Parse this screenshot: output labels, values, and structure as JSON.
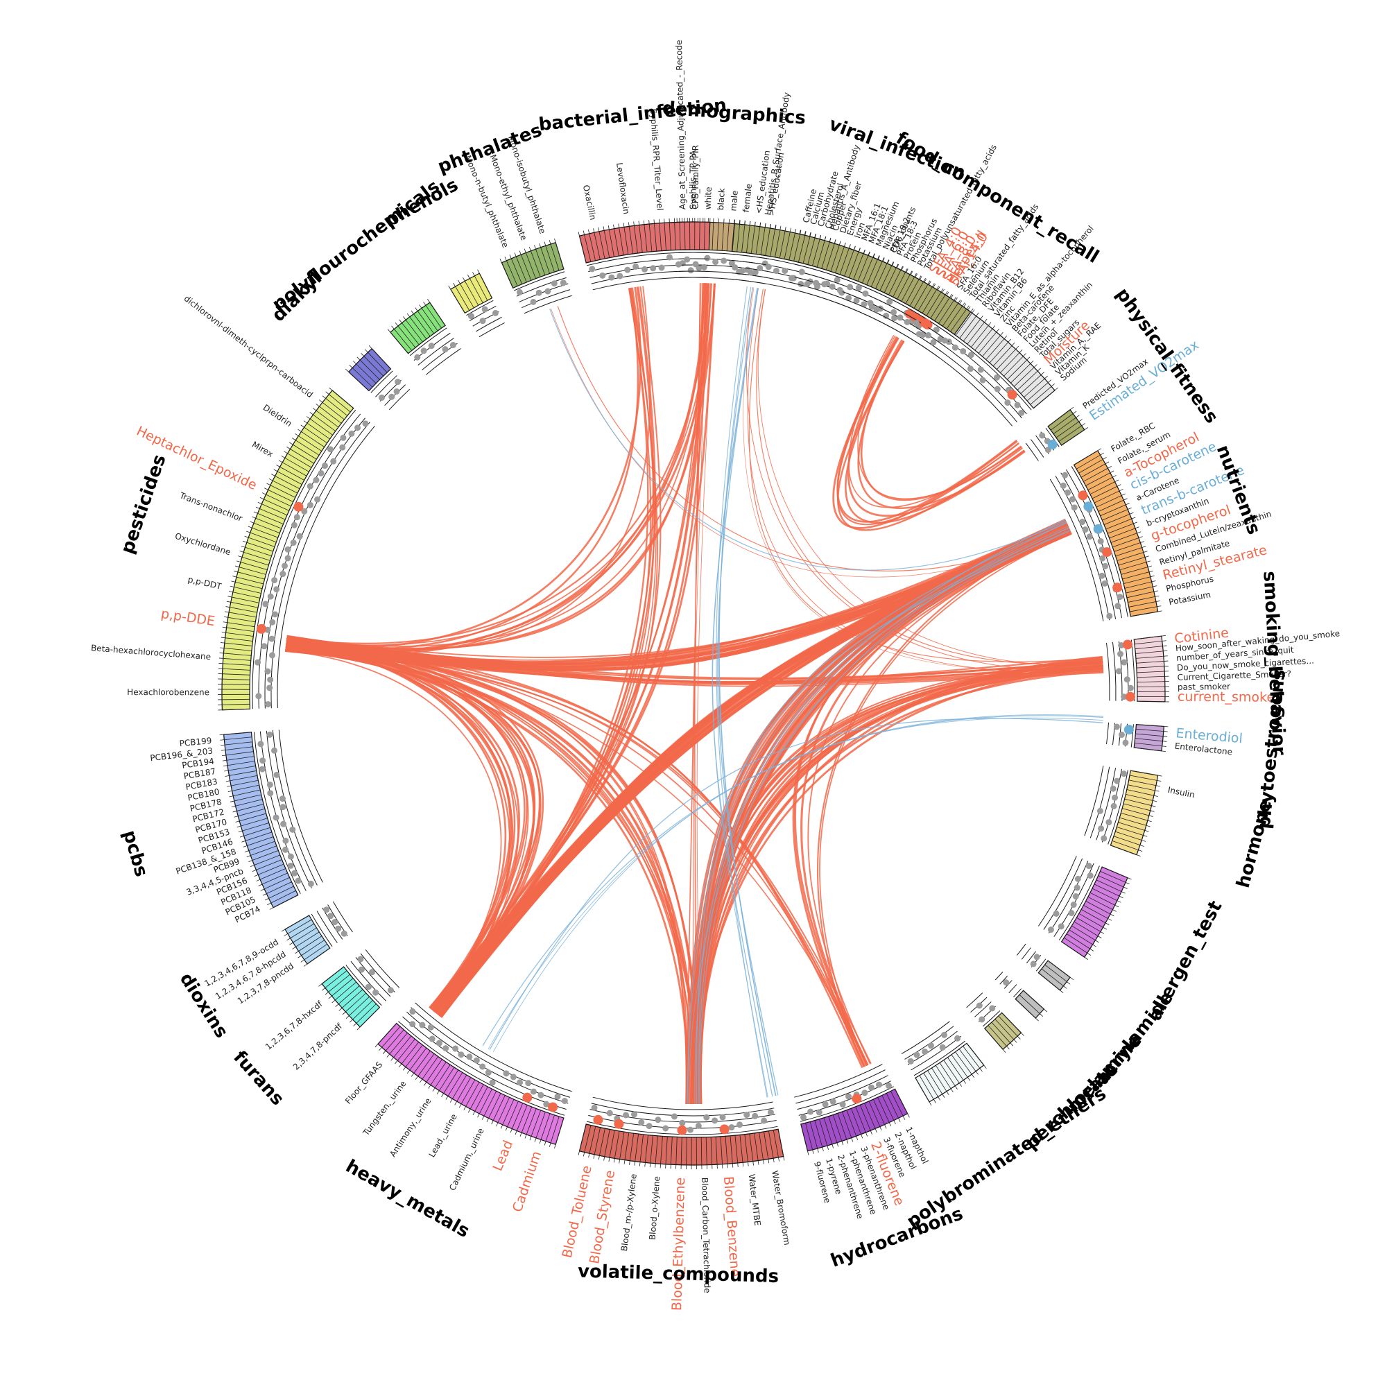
{
  "colors": {
    "positive": "#f2684a",
    "negative": "#6aaed6",
    "track": "#1a1a1a",
    "dot": "#9b9b9b"
  },
  "groups": [
    {
      "name": "demographics",
      "start": -2,
      "end": 10,
      "color": "#c4a676",
      "key": "demographics",
      "labels": [
        "Age_at_Screening_Adjudicated_-_Recode",
        "CPS_Family_PIR",
        "white",
        "black",
        "male",
        "female",
        "<HS_education",
        ">HS_education"
      ]
    },
    {
      "name": "food_component_recall",
      "start": 13,
      "end": 50,
      "color": "#e6e6e6",
      "key": "food",
      "labels": [
        "Caffeine",
        "Calcium",
        "Carbohydrate",
        "Cholesterol",
        "Copper",
        "Dietary_fiber",
        "Energy",
        "Iron",
        "MFA_16:1",
        "MFA_18:1",
        "Magnesium",
        "Niacin",
        "PFA_18:2",
        "PFA_18:3",
        "Protein",
        "Phosphorus",
        "Potassium",
        "Total_polyunsaturated_fatty_acids",
        "SFA_4:0",
        "SFA_6:0",
        "SFA_8:0",
        "SFA_14:0",
        "SFA_16:0",
        "Selenium",
        "Total_saturated_fatty_acids",
        "Thiamin",
        "Riboflavin",
        "Vitamin_B12",
        "Vitamin_B6",
        "Zinc",
        "Vitamin_E_as_alpha-tocopherol",
        "Beta-carotene",
        "Folate,_DFE",
        "Food_folate",
        "Lutein_+_zeaxanthin",
        "Retinol",
        "Total_sugars",
        "Moisture",
        "Vitamin_A,_RAE",
        "Vitamin_K",
        "Sodium"
      ]
    },
    {
      "name": "physical_fitness",
      "start": 53,
      "end": 56,
      "color": "#a8ad6a",
      "key": "fitness",
      "labels": [
        "Predicted_VO2max",
        "Estimated_VO2max"
      ]
    },
    {
      "name": "nutrients",
      "start": 59,
      "end": 80,
      "color": "#f4b166",
      "key": "nutrients",
      "labels": [
        "Folate,_RBC",
        "Folate,_serum",
        "a-Tocopherol",
        "cis-b-carotene",
        "a-Carotene",
        "trans-b-carotene",
        "b-cryptoxanthin",
        "g-tocopherol",
        "Combined_Lutein/zeaxanthin",
        "Retinyl_palmitate",
        "Retinyl_stearate",
        "Phosphorus",
        "Potassium"
      ]
    },
    {
      "name": "smoking_behavior",
      "start": 83,
      "end": 91,
      "color": "#f2d5dc",
      "key": "smoking",
      "labels": [
        "Cotinine",
        "How_soon_after_waking_do_you_smoke",
        "number_of_years_since_quit",
        "Do_you_now_smoke_cigarettes...",
        "Current_Cigarette_Smoker?",
        "past_smoker",
        "current_smoker"
      ]
    },
    {
      "name": "phytoestrogens",
      "start": 94,
      "end": 97,
      "color": "#c6a6d6",
      "key": "phyto",
      "labels": [
        "Enterodiol",
        "Enterolactone"
      ]
    },
    {
      "name": "hormone",
      "start": 100,
      "end": 110,
      "color": "#f3dd8a",
      "key": "hormone",
      "labels": [
        "Insulin"
      ]
    },
    {
      "name": "allergen_test",
      "start": 113,
      "end": 124,
      "color": "#d17ee0",
      "key": "allergen",
      "labels": []
    },
    {
      "name": "acrylamide",
      "start": 127,
      "end": 129,
      "color": "#bfbfbf",
      "key": "acryl",
      "labels": []
    },
    {
      "name": "melamine",
      "start": 132,
      "end": 133.5,
      "color": "#bfbfbf",
      "key": "melamine",
      "labels": []
    },
    {
      "name": "perchlorate",
      "start": 136,
      "end": 139,
      "color": "#c7c48a",
      "key": "perchlorate",
      "labels": []
    },
    {
      "name": "polybrominated_ethers",
      "start": 142,
      "end": 150,
      "color": "#f1f7f7",
      "key": "pbde",
      "labels": []
    },
    {
      "name": "hydrocarbons",
      "start": 153,
      "end": 166,
      "color": "#a34ec9",
      "key": "hydro",
      "labels": [
        "1-napthol",
        "2-napthol",
        "3-fluorene",
        "2-fluorene",
        "3-phenanthrene",
        "1-phenanthrene",
        "2-phenanthrene",
        "1-pyrene",
        "9-fluorene"
      ]
    },
    {
      "name": "volatile_compounds",
      "start": 169,
      "end": 194,
      "color": "#d96a60",
      "key": "voc",
      "labels": [
        "Water_Bromoform",
        "Water_MTBE",
        "Blood_Benzene",
        "Blood_Carbon_Tetrachloride",
        "Blood_Ethylbenzene",
        "Blood_o-Xylene",
        "Blood_m-/p-Xylene",
        "Blood_Styrene",
        "Blood_Toluene"
      ]
    },
    {
      "name": "heavy_metals",
      "start": 197,
      "end": 222,
      "color": "#de7ae0",
      "key": "metals",
      "labels": [
        "Cadmium",
        "Lead",
        "Cadmium,_urine",
        "Lead,_urine",
        "Antimony,_urine",
        "Tungsten,_urine",
        "Floor_GFAAS"
      ]
    },
    {
      "name": "furans",
      "start": 225,
      "end": 232,
      "color": "#7af0e0",
      "key": "furans",
      "labels": [
        "2,3,4,7,8-pncdf",
        "1,2,3,6,7,8-hxcdf"
      ]
    },
    {
      "name": "dioxins",
      "start": 235,
      "end": 240,
      "color": "#b2d7f2",
      "key": "dioxins",
      "labels": [
        "1,2,3,7,8-pncdd",
        "1,2,3,4,6,7,8-hpcdd",
        "1,2,3,4,6,7,8,9-ocdd"
      ]
    },
    {
      "name": "pcbs",
      "start": 243,
      "end": 265,
      "color": "#a6bdf0",
      "key": "pcbs",
      "labels": [
        "PCB74",
        "PCB105",
        "PCB118",
        "PCB156",
        "3,3,4,4,5-pncb",
        "PCB99",
        "PCB138_&_158",
        "PCB146",
        "PCB153",
        "PCB170",
        "PCB172",
        "PCB178",
        "PCB180",
        "PCB183",
        "PCB187",
        "PCB194",
        "PCB196_&_203",
        "PCB199"
      ]
    },
    {
      "name": "pesticides",
      "start": 268,
      "end": 310,
      "color": "#e2ec82",
      "key": "pesticides",
      "labels": [
        "Hexachlorobenzene",
        "Beta-hexachlorocyclohexane",
        "p,p-DDE",
        "p,p-DDT",
        "Oxychlordane",
        "Trans-nonachlor",
        "Heptachlor_Epoxide",
        "Mirex",
        "Dieldrin",
        "dichlorovnl-dimeth-cyclprpn-carboacid"
      ]
    },
    {
      "name": "diakyl",
      "start": 313,
      "end": 317,
      "color": "#7a7ad6",
      "key": "diakyl",
      "labels": []
    },
    {
      "name": "polyflourochemicals",
      "start": 320,
      "end": 326,
      "color": "#86e27a",
      "key": "pfc",
      "labels": []
    },
    {
      "name": "phenols",
      "start": 329,
      "end": 333,
      "color": "#eaea7a",
      "key": "phenols",
      "labels": []
    },
    {
      "name": "phthalates",
      "start": 336,
      "end": 343,
      "color": "#93b56b",
      "key": "phthalates",
      "labels": [
        "Mono-n-butyl_phthalate",
        "Mono-ethyl_phthalate",
        "Mono-isobutyl_phthalate"
      ]
    },
    {
      "name": "bacterial_infection",
      "start": 346,
      "end": 362,
      "color": "#e07070",
      "key": "bacterial",
      "labels": [
        "Oxacillin",
        "Levofloxacin",
        "Syphilis_RPR_Titer_Level",
        "Syphilis_TP-PA"
      ]
    },
    {
      "name": "viral_infection",
      "start": 365,
      "end": 396,
      "color": "#a8a86b",
      "key": "viral",
      "labels": [
        "Hepatitis_B_Surface_Antibody",
        "Hepatitis_A_Antibody",
        "CD8_counts",
        "Herpes_II"
      ]
    }
  ],
  "highlights": [
    {
      "text": "SFA_4:0",
      "color": "red"
    },
    {
      "text": "SFA_6:0",
      "color": "red"
    },
    {
      "text": "SFA_8:0",
      "color": "red"
    },
    {
      "text": "SFA_14:0",
      "color": "red"
    },
    {
      "text": "Moisture",
      "color": "red"
    },
    {
      "text": "Estimated_VO2max",
      "color": "blue"
    },
    {
      "text": "a-Tocopherol",
      "color": "red"
    },
    {
      "text": "cis-b-carotene",
      "color": "blue"
    },
    {
      "text": "trans-b-carotene",
      "color": "blue"
    },
    {
      "text": "g-tocopherol",
      "color": "red"
    },
    {
      "text": "Retinyl_stearate",
      "color": "red"
    },
    {
      "text": "Cotinine",
      "color": "red"
    },
    {
      "text": "current_smoker",
      "color": "red"
    },
    {
      "text": "Enterodiol",
      "color": "blue"
    },
    {
      "text": "2-fluorene",
      "color": "red"
    },
    {
      "text": "Blood_Benzene",
      "color": "red"
    },
    {
      "text": "Blood_Ethylbenzene",
      "color": "red"
    },
    {
      "text": "Blood_Styrene",
      "color": "red"
    },
    {
      "text": "Blood_Toluene",
      "color": "red"
    },
    {
      "text": "Cadmium",
      "color": "red"
    },
    {
      "text": "Lead",
      "color": "red"
    },
    {
      "text": "Heptachlor_Epoxide",
      "color": "red"
    },
    {
      "text": "p,p-DDE",
      "color": "red"
    },
    {
      "text": "Herpes_II",
      "color": "red"
    }
  ],
  "hubs": {
    "demographics": 2,
    "nutrients": 66,
    "smoking": 86,
    "metals": 219,
    "voc": 180,
    "pesticides": 277,
    "hydro": 155,
    "food": 30,
    "bacterial": 352,
    "viral": 369
  },
  "links": [
    {
      "from": 219,
      "to": 66,
      "n": 38,
      "color": "red",
      "w": 2.6
    },
    {
      "from": 180,
      "to": 66,
      "n": 30,
      "color": "red",
      "w": 2.6
    },
    {
      "from": 180,
      "to": 86,
      "n": 22,
      "color": "red",
      "w": 2.6
    },
    {
      "from": 277,
      "to": 66,
      "n": 26,
      "color": "red",
      "w": 2.6
    },
    {
      "from": 277,
      "to": 86,
      "n": 10,
      "color": "red",
      "w": 2.6
    },
    {
      "from": 277,
      "to": 219,
      "n": 20,
      "color": "red",
      "w": 2.6
    },
    {
      "from": 277,
      "to": 180,
      "n": 14,
      "color": "red",
      "w": 2.6
    },
    {
      "from": 277,
      "to": 352,
      "n": 3,
      "color": "red",
      "w": 2.6
    },
    {
      "from": 277,
      "to": 2,
      "n": 8,
      "color": "red",
      "w": 2.6
    },
    {
      "from": 219,
      "to": 2,
      "n": 6,
      "color": "red",
      "w": 2.6
    },
    {
      "from": 219,
      "to": 352,
      "n": 8,
      "color": "red",
      "w": 2.6
    },
    {
      "from": 155,
      "to": 66,
      "n": 6,
      "color": "red",
      "w": 2.6
    },
    {
      "from": 155,
      "to": 277,
      "n": 6,
      "color": "red",
      "w": 2.6
    },
    {
      "from": 30,
      "to": 53,
      "n": 10,
      "color": "red",
      "w": 2.4
    },
    {
      "from": 2,
      "to": 180,
      "n": 6,
      "color": "red",
      "w": 1.2
    },
    {
      "from": 369,
      "to": 86,
      "n": 6,
      "color": "red",
      "w": 1.0
    },
    {
      "from": 340,
      "to": 66,
      "n": 2,
      "color": "red",
      "w": 1.0
    },
    {
      "from": 180,
      "to": 66,
      "n": 8,
      "color": "blue",
      "w": 1.2
    },
    {
      "from": 8,
      "to": 169,
      "n": 6,
      "color": "blue",
      "w": 1.2
    },
    {
      "from": 339,
      "to": 66,
      "n": 1,
      "color": "blue",
      "w": 1.2
    },
    {
      "from": 210,
      "to": 94,
      "n": 4,
      "color": "blue",
      "w": 1.2
    }
  ]
}
